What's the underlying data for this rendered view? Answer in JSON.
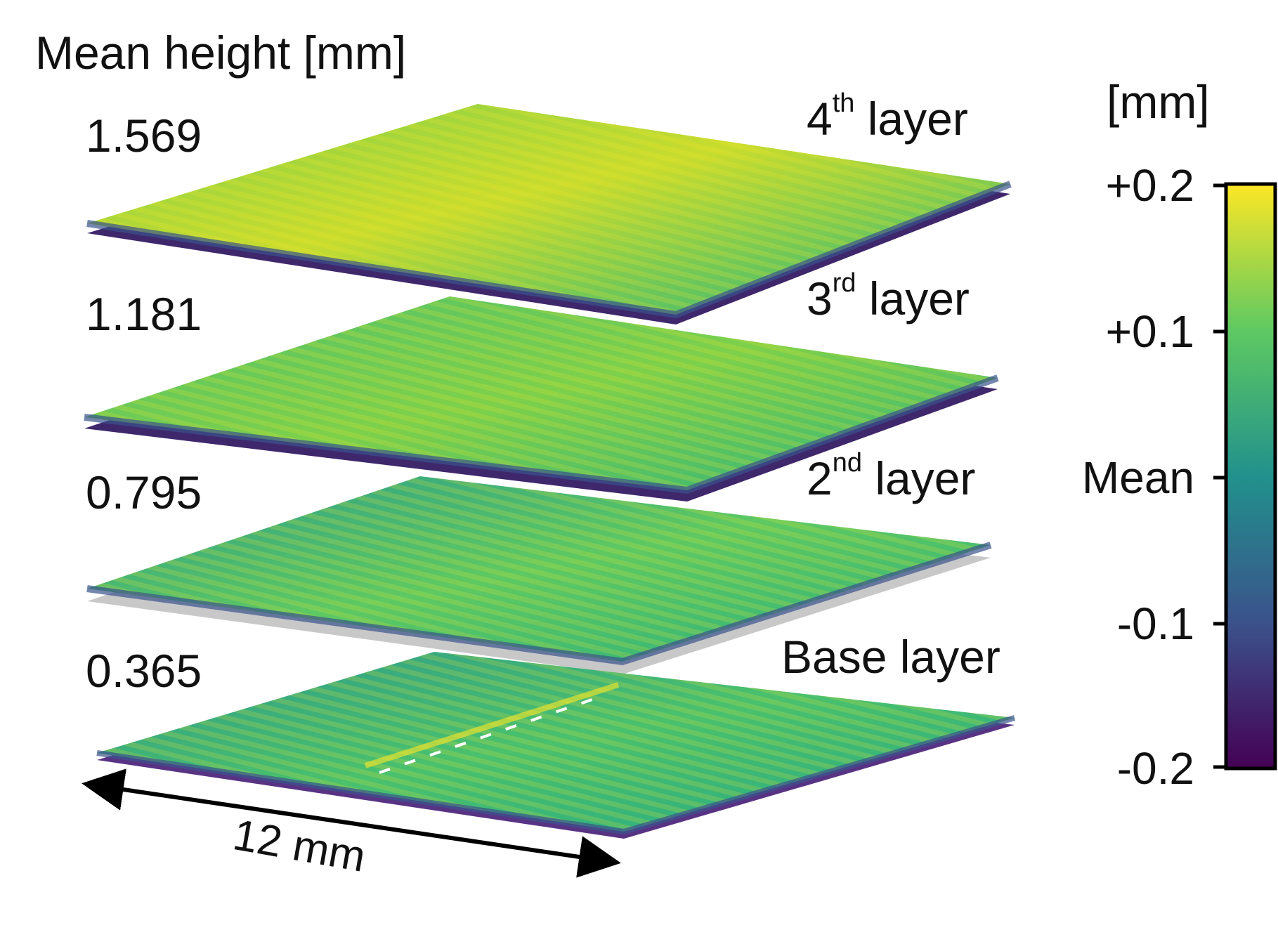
{
  "title": "Mean height [mm]",
  "layers": [
    {
      "id": "layer-4",
      "ordinal": "4",
      "suffix": "th",
      "rest": " layer",
      "mean_height": "1.569"
    },
    {
      "id": "layer-3",
      "ordinal": "3",
      "suffix": "rd",
      "rest": " layer",
      "mean_height": "1.181"
    },
    {
      "id": "layer-2",
      "ordinal": "2",
      "suffix": "nd",
      "rest": " layer",
      "mean_height": "0.795"
    },
    {
      "id": "base",
      "ordinal": "Base layer",
      "suffix": "",
      "rest": "",
      "mean_height": "0.365"
    }
  ],
  "colorbar": {
    "unit": "[mm]",
    "colormap": [
      "#440154",
      "#3b528b",
      "#21918c",
      "#5ec962",
      "#fde725"
    ],
    "range": [
      -0.2,
      0.2
    ],
    "ticks": [
      "+0.2",
      "+0.1",
      "Mean",
      "-0.1",
      "-0.2"
    ]
  },
  "scale_bar": {
    "label": "12 mm"
  }
}
